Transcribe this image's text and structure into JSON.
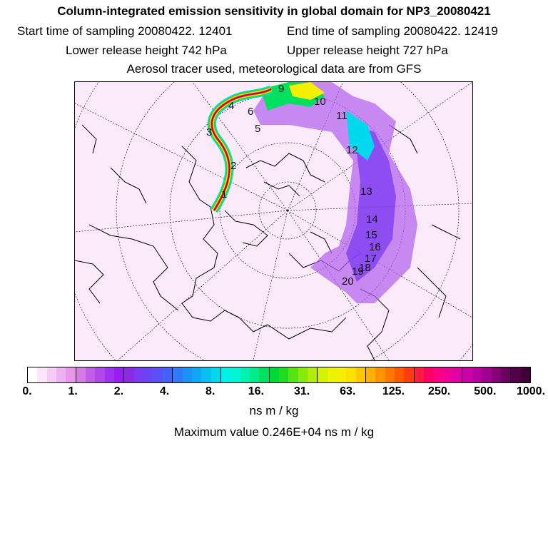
{
  "header": {
    "title": "Column-integrated emission sensitivity in global domain for NP3_20080421",
    "start_label": "Start time of sampling 20080422. 12401",
    "end_label": "End time of sampling 20080422. 12419",
    "lower_label": "Lower release height  742 hPa",
    "upper_label": "Upper release height  727 hPa",
    "tracer_line": "Aerosol tracer used, meteorological data are from GFS"
  },
  "map": {
    "background_color": "#fbeaf9",
    "trajectory_labels": [
      "1",
      "2",
      "3",
      "4",
      "5",
      "6",
      "9",
      "10",
      "11",
      "12",
      "13",
      "14",
      "15",
      "16",
      "17",
      "18",
      "19",
      "20"
    ]
  },
  "colorbar": {
    "tick_labels": [
      "0.",
      "1.",
      "2.",
      "4.",
      "8.",
      "16.",
      "31.",
      "63.",
      "125.",
      "250.",
      "500.",
      "1000."
    ],
    "colors": [
      "#ffffff",
      "#fbe6fb",
      "#f5ccf5",
      "#efb2f0",
      "#e897ea",
      "#d67be6",
      "#c45ee8",
      "#b247ea",
      "#a130ee",
      "#9a1cf2",
      "#8a2be2",
      "#7a3af0",
      "#6a44f4",
      "#5a50f6",
      "#4660f8",
      "#2f7af8",
      "#1c92f8",
      "#10a8f6",
      "#08c0f0",
      "#00d8ee",
      "#00f0ea",
      "#00f6d2",
      "#00f2b0",
      "#00ec8a",
      "#00e060",
      "#00d83a",
      "#20dc20",
      "#58e412",
      "#88ea0c",
      "#b0ee08",
      "#d4f204",
      "#eaf400",
      "#f6f000",
      "#fce000",
      "#fec800",
      "#ffb000",
      "#ff9400",
      "#ff7800",
      "#ff5a00",
      "#ff3c10",
      "#ff1c40",
      "#ff0060",
      "#fc0080",
      "#f0009a",
      "#e000a8",
      "#cc00a8",
      "#b800a0",
      "#a00090",
      "#860078",
      "#6a0060",
      "#52004a",
      "#3e0036"
    ],
    "units": "ns m / kg"
  },
  "footer": {
    "max_value": "Maximum value  0.246E+04 ns m / kg"
  }
}
